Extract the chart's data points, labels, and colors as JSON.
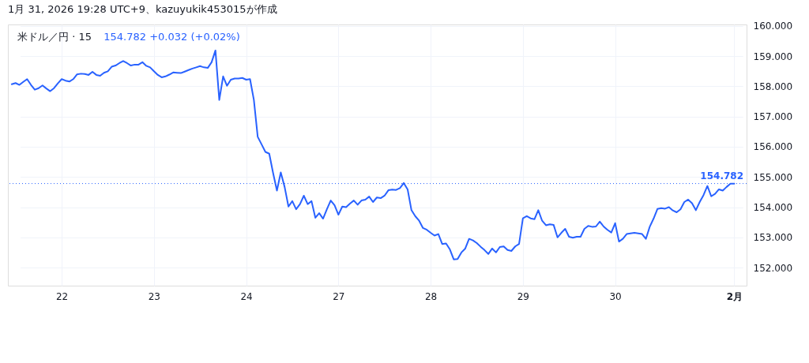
{
  "chart_data": {
    "type": "line",
    "title": "1月 31, 2026 19:28 UTC+9、kazuyukik453015が作成",
    "annotations": [
      "米ドル／円 · 15",
      "154.782 +0.032 (+0.02%)"
    ],
    "categories": [
      null,
      null,
      null,
      null,
      null,
      null,
      null,
      null,
      null,
      null,
      null,
      null,
      null,
      "22",
      null,
      null,
      null,
      null,
      null,
      null,
      null,
      null,
      null,
      null,
      null,
      null,
      null,
      null,
      null,
      null,
      null,
      null,
      null,
      null,
      null,
      null,
      null,
      "23",
      null,
      null,
      null,
      null,
      null,
      null,
      null,
      null,
      null,
      null,
      null,
      null,
      null,
      null,
      null,
      null,
      null,
      null,
      null,
      null,
      null,
      null,
      null,
      "24",
      null,
      null,
      null,
      null,
      null,
      null,
      null,
      null,
      null,
      null,
      null,
      null,
      null,
      null,
      null,
      null,
      null,
      null,
      null,
      null,
      null,
      null,
      null,
      "27",
      null,
      null,
      null,
      null,
      null,
      null,
      null,
      null,
      null,
      null,
      null,
      null,
      null,
      null,
      null,
      null,
      null,
      null,
      null,
      null,
      null,
      null,
      null,
      "28",
      null,
      null,
      null,
      null,
      null,
      null,
      null,
      null,
      null,
      null,
      null,
      null,
      null,
      null,
      null,
      null,
      null,
      null,
      null,
      null,
      null,
      null,
      null,
      "29",
      null,
      null,
      null,
      null,
      null,
      null,
      null,
      null,
      null,
      null,
      null,
      null,
      null,
      null,
      null,
      null,
      null,
      null,
      null,
      null,
      null,
      null,
      null,
      "30",
      null,
      null,
      null,
      null,
      null,
      null,
      null,
      null,
      null,
      null,
      null,
      null,
      null,
      null,
      null,
      null,
      null,
      null,
      null,
      null,
      null,
      null,
      null,
      null,
      null,
      null,
      null,
      null,
      null,
      null,
      "2月"
    ],
    "series": [
      {
        "color": "#2962ff",
        "values": [
          158.07,
          158.11,
          158.05,
          158.15,
          158.24,
          158.05,
          157.89,
          157.94,
          158.03,
          157.93,
          157.84,
          157.94,
          158.1,
          158.24,
          158.19,
          158.16,
          158.24,
          158.4,
          158.42,
          158.41,
          158.38,
          158.48,
          158.38,
          158.35,
          158.45,
          158.5,
          158.65,
          158.69,
          158.77,
          158.84,
          158.77,
          158.69,
          158.72,
          158.72,
          158.8,
          158.68,
          158.63,
          158.5,
          158.38,
          158.3,
          158.33,
          158.39,
          158.46,
          158.45,
          158.44,
          158.49,
          158.54,
          158.59,
          158.63,
          158.67,
          158.63,
          158.61,
          158.8,
          159.19,
          157.55,
          158.33,
          158.02,
          158.22,
          158.26,
          158.26,
          158.28,
          158.22,
          158.24,
          157.55,
          156.33,
          156.08,
          155.83,
          155.77,
          155.13,
          154.55,
          155.15,
          154.67,
          154.02,
          154.2,
          153.93,
          154.1,
          154.38,
          154.1,
          154.2,
          153.65,
          153.8,
          153.62,
          153.93,
          154.22,
          154.06,
          153.75,
          154.02,
          154.0,
          154.12,
          154.22,
          154.08,
          154.22,
          154.25,
          154.35,
          154.17,
          154.32,
          154.3,
          154.38,
          154.56,
          154.58,
          154.57,
          154.63,
          154.8,
          154.59,
          153.9,
          153.7,
          153.55,
          153.31,
          153.25,
          153.15,
          153.06,
          153.11,
          152.78,
          152.8,
          152.6,
          152.27,
          152.28,
          152.5,
          152.63,
          152.95,
          152.9,
          152.81,
          152.69,
          152.58,
          152.45,
          152.63,
          152.5,
          152.68,
          152.7,
          152.58,
          152.55,
          152.7,
          152.78,
          153.63,
          153.7,
          153.63,
          153.6,
          153.9,
          153.55,
          153.4,
          153.43,
          153.41,
          153.0,
          153.15,
          153.28,
          153.02,
          152.99,
          153.02,
          153.02,
          153.28,
          153.38,
          153.35,
          153.36,
          153.52,
          153.36,
          153.25,
          153.16,
          153.47,
          152.86,
          152.95,
          153.11,
          153.13,
          153.15,
          153.13,
          153.11,
          152.95,
          153.35,
          153.62,
          153.94,
          153.97,
          153.95,
          154.0,
          153.89,
          153.83,
          153.93,
          154.17,
          154.25,
          154.13,
          153.9,
          154.17,
          154.4,
          154.7,
          154.36,
          154.44,
          154.59,
          154.55,
          154.67,
          154.78,
          154.78
        ]
      }
    ],
    "ylim": [
      151.4,
      160.05
    ],
    "yticks": [
      {
        "value": 152,
        "label": "152.000"
      },
      {
        "value": 153,
        "label": "153.000"
      },
      {
        "value": 154,
        "label": "154.000"
      },
      {
        "value": 155,
        "label": "155.000"
      },
      {
        "value": 156,
        "label": "156.000"
      },
      {
        "value": 157,
        "label": "157.000"
      },
      {
        "value": 158,
        "label": "158.000"
      },
      {
        "value": 159,
        "label": "159.000"
      },
      {
        "value": 160,
        "label": "160.000"
      }
    ],
    "grid": true,
    "ref_lines": [
      {
        "axis": "y",
        "value": 154.782,
        "label": "154.782",
        "color": "#2962ff",
        "line_style": "dotted"
      }
    ]
  }
}
